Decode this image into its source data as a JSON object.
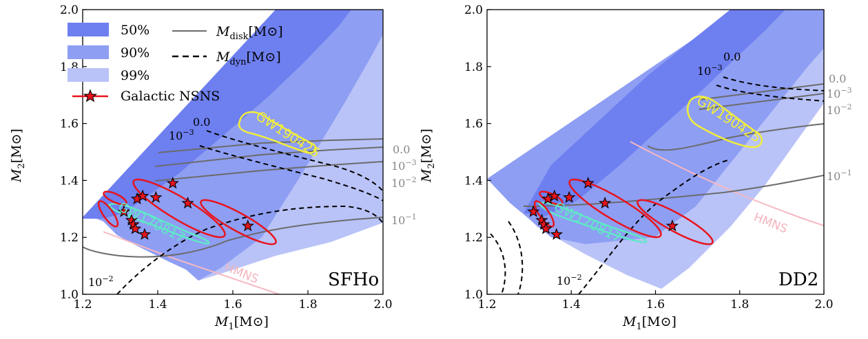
{
  "colors": {
    "ci50": "#6e7ff0",
    "ci90": "#8e9ef3",
    "ci99": "#b9c3f8",
    "disk": "#6b6b6b",
    "dyn": "#000000",
    "galactic": "#e8141c",
    "gw170817": "#5fe8c6",
    "gw190425": "#f2ee3a",
    "hmns": "#f6b8c2"
  },
  "legend": {
    "ci": [
      "50%",
      "90%",
      "99%"
    ],
    "galactic": "Galactic NSNS",
    "disk_main": "M",
    "disk_sub": "disk",
    "disk_unit_open": "[M",
    "disk_unit_close": "]",
    "dyn_main": "M",
    "dyn_sub": "dyn",
    "dyn_unit_open": "[M",
    "dyn_unit_close": "]"
  },
  "chart_data": [
    {
      "type": "contour",
      "panel": "SFHo",
      "xlabel_main": "M",
      "xlabel_sub": "1",
      "xlabel_unit": "[M",
      "xlabel_close": "]",
      "ylabel_main": "M",
      "ylabel_sub": "2",
      "ylabel_unit": "[M",
      "ylabel_close": "]",
      "xlim": [
        1.2,
        2.0
      ],
      "ylim": [
        1.0,
        2.0
      ],
      "xticks": [
        "1.2",
        "1.4",
        "1.6",
        "1.8",
        "2.0"
      ],
      "yticks": [
        "1.0",
        "1.2",
        "1.4",
        "1.6",
        "1.8",
        "2.0"
      ],
      "galactic_nsns": [
        [
          1.33,
          1.26
        ],
        [
          1.345,
          1.335
        ],
        [
          1.36,
          1.345
        ],
        [
          1.395,
          1.34
        ],
        [
          1.44,
          1.39
        ],
        [
          1.48,
          1.32
        ],
        [
          1.64,
          1.24
        ],
        [
          1.31,
          1.29
        ],
        [
          1.335,
          1.245
        ],
        [
          1.34,
          1.23
        ],
        [
          1.365,
          1.21
        ]
      ],
      "disk_labels": [
        "0.0",
        "10",
        "10",
        "10"
      ],
      "disk_exps": [
        "",
        "−3",
        "−2",
        "−1"
      ],
      "dyn_labels": [
        "0.0",
        "10",
        "10"
      ],
      "dyn_exps": [
        "",
        "−3",
        "−2"
      ],
      "gw_labels": [
        "GW190425",
        "GW170817"
      ],
      "hmns_label": "HMNS"
    },
    {
      "type": "contour",
      "panel": "DD2",
      "xlabel_main": "M",
      "xlabel_sub": "1",
      "xlabel_unit": "[M",
      "xlabel_close": "]",
      "ylabel_main": "M",
      "ylabel_sub": "2",
      "ylabel_unit": "[M",
      "ylabel_close": "]",
      "xlim": [
        1.2,
        2.0
      ],
      "ylim": [
        1.0,
        2.0
      ],
      "xticks": [
        "1.2",
        "1.4",
        "1.6",
        "1.8",
        "2.0"
      ],
      "yticks": [
        "1.0",
        "1.2",
        "1.4",
        "1.6",
        "1.8",
        "2.0"
      ],
      "galactic_nsns": [
        [
          1.33,
          1.26
        ],
        [
          1.345,
          1.335
        ],
        [
          1.36,
          1.345
        ],
        [
          1.395,
          1.34
        ],
        [
          1.44,
          1.39
        ],
        [
          1.48,
          1.32
        ],
        [
          1.64,
          1.24
        ],
        [
          1.31,
          1.29
        ],
        [
          1.335,
          1.245
        ],
        [
          1.34,
          1.23
        ],
        [
          1.365,
          1.21
        ]
      ],
      "disk_labels": [
        "0.0",
        "10",
        "10",
        "10"
      ],
      "disk_exps": [
        "",
        "−3",
        "−2",
        "−1"
      ],
      "dyn_labels": [
        "0.0",
        "10",
        "10"
      ],
      "dyn_exps": [
        "",
        "−3",
        "−2"
      ],
      "gw_labels": [
        "GW190425",
        "GW170817"
      ],
      "hmns_label": "HMNS"
    }
  ]
}
